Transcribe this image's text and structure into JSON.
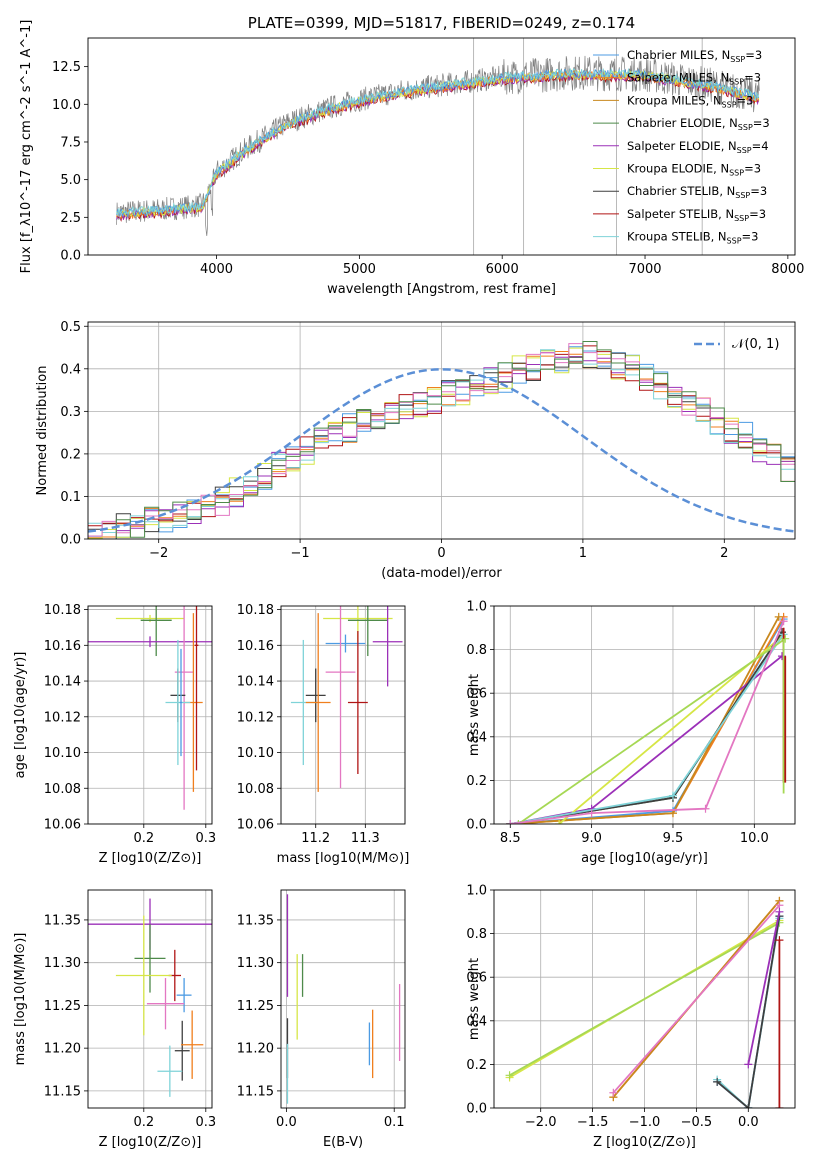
{
  "colors": {
    "Chabrier MILES": "#4C9BE3",
    "Salpeter MILES": "#F07F1E",
    "Kroupa MILES": "#C8881E",
    "Chabrier ELODIE": "#4E8A4A",
    "Salpeter ELODIE": "#9B30B8",
    "Kroupa ELODIE": "#D6E646",
    "Chabrier STELIB": "#3F3F3F",
    "Salpeter STELIB": "#B01515",
    "Kroupa STELIB": "#7FD3D8",
    "pink": "#E377C2",
    "lime": "#A6D854",
    "data": "#808080",
    "normal": "#5B8FD6"
  },
  "chart_data": [
    {
      "id": "spectrum",
      "type": "line",
      "title": "PLATE=0399, MJD=51817, FIBERID=0249, z=0.174",
      "xlabel": "wavelength [Angstrom, rest frame]",
      "ylabel": "Flux [f_λ10^-17 erg cm^-2 s^-1 A^-1]",
      "xlim": [
        3100,
        8050
      ],
      "ylim": [
        0,
        14.4
      ],
      "xticks": [
        "4000",
        "5000",
        "6000",
        "7000",
        "8000"
      ],
      "yticks": [
        "0.0",
        "2.5",
        "5.0",
        "7.5",
        "10.0",
        "12.5"
      ],
      "continuum_x": [
        3300,
        3600,
        3900,
        4000,
        4200,
        4500,
        4800,
        5000,
        5300,
        5600,
        6000,
        6500,
        7000,
        7500,
        7800
      ],
      "continuum_y": [
        2.8,
        3.0,
        3.3,
        5.5,
        7.0,
        8.8,
        9.8,
        10.3,
        10.9,
        11.3,
        11.8,
        12.1,
        12.0,
        11.2,
        10.5
      ],
      "vlines": [
        5800,
        6150,
        6800,
        7400
      ],
      "legend": [
        {
          "label": "Chabrier MILES, N",
          "sub": "SSP",
          "suffix": "=3"
        },
        {
          "label": "Salpeter MILES, N",
          "sub": "SSP",
          "suffix": "=3"
        },
        {
          "label": "Kroupa MILES, N",
          "sub": "SSP",
          "suffix": "=3"
        },
        {
          "label": "Chabrier ELODIE, N",
          "sub": "SSP",
          "suffix": "=3"
        },
        {
          "label": "Salpeter ELODIE, N",
          "sub": "SSP",
          "suffix": "=4"
        },
        {
          "label": "Kroupa ELODIE, N",
          "sub": "SSP",
          "suffix": "=3"
        },
        {
          "label": "Chabrier STELIB, N",
          "sub": "SSP",
          "suffix": "=3"
        },
        {
          "label": "Salpeter STELIB, N",
          "sub": "SSP",
          "suffix": "=3"
        },
        {
          "label": "Kroupa STELIB, N",
          "sub": "SSP",
          "suffix": "=3"
        }
      ]
    },
    {
      "id": "residuals",
      "type": "histogram",
      "xlabel": "(data-model)/error",
      "ylabel": "Normed distribution",
      "xlim": [
        -2.5,
        2.5
      ],
      "ylim": [
        0,
        0.51
      ],
      "xticks": [
        "−2",
        "−1",
        "0",
        "1",
        "2"
      ],
      "yticks": [
        "0.0",
        "0.1",
        "0.2",
        "0.3",
        "0.4",
        "0.5"
      ],
      "legend": "𝒩(0, 1)",
      "bin_width": 0.1,
      "base_profile": [
        0.02,
        0.02,
        0.03,
        0.03,
        0.04,
        0.05,
        0.06,
        0.07,
        0.08,
        0.09,
        0.11,
        0.13,
        0.15,
        0.17,
        0.19,
        0.21,
        0.23,
        0.24,
        0.26,
        0.27,
        0.29,
        0.3,
        0.31,
        0.32,
        0.33,
        0.34,
        0.35,
        0.36,
        0.37,
        0.38,
        0.4,
        0.4,
        0.41,
        0.42,
        0.43,
        0.43,
        0.42,
        0.41,
        0.4,
        0.38,
        0.36,
        0.34,
        0.32,
        0.3,
        0.28,
        0.26,
        0.24,
        0.21,
        0.19,
        0.17
      ]
    },
    {
      "id": "age-vs-z",
      "type": "errorbar",
      "xlabel": "Z [log10(Z/Z⊙)]",
      "ylabel": "age  [log10(age/yr)]",
      "xlim": [
        0.11,
        0.31
      ],
      "ylim": [
        10.06,
        10.182
      ],
      "xticks": [
        "0.2",
        "0.3"
      ],
      "yticks": [
        "10.06",
        "10.08",
        "10.10",
        "10.12",
        "10.14",
        "10.16",
        "10.18"
      ],
      "points": [
        {
          "c": "Kroupa ELODIE",
          "x": 0.21,
          "xe": 0.055,
          "y": 10.175,
          "ye": 0.002
        },
        {
          "c": "Chabrier ELODIE",
          "x": 0.22,
          "xe": 0.025,
          "y": 10.174,
          "ye": 0.02
        },
        {
          "c": "Salpeter ELODIE",
          "x": 0.21,
          "xe": 0.1,
          "y": 10.162,
          "ye": 0.003
        },
        {
          "c": "pink",
          "x": 0.265,
          "xe": 0.015,
          "y": 10.145,
          "ye": 0.077
        },
        {
          "c": "Chabrier STELIB",
          "x": 0.255,
          "xe": 0.012,
          "y": 10.132,
          "ye": 0.015
        },
        {
          "c": "Salpeter MILES",
          "x": 0.28,
          "xe": 0.015,
          "y": 10.128,
          "ye": 0.05
        },
        {
          "c": "Kroupa STELIB",
          "x": 0.255,
          "xe": 0.02,
          "y": 10.128,
          "ye": 0.035
        },
        {
          "c": "Salpeter STELIB",
          "x": 0.285,
          "xe": 0.003,
          "y": 10.16,
          "ye": 0.07
        },
        {
          "c": "Chabrier MILES",
          "x": 0.26,
          "xe": 0.002,
          "y": 10.128,
          "ye": 0.03
        }
      ]
    },
    {
      "id": "age-vs-mass",
      "type": "errorbar",
      "xlabel": "mass [log10(M/M⊙)]",
      "ylabel": "",
      "xlim": [
        11.13,
        11.38
      ],
      "ylim": [
        10.06,
        10.182
      ],
      "xticks": [
        "11.2",
        "11.3"
      ],
      "yticks": [
        "10.06",
        "10.08",
        "10.10",
        "10.12",
        "10.14",
        "10.16",
        "10.18"
      ],
      "points": [
        {
          "c": "Kroupa ELODIE",
          "x": 11.285,
          "xe": 0.07,
          "y": 10.175,
          "ye": 0.013
        },
        {
          "c": "Chabrier ELODIE",
          "x": 11.305,
          "xe": 0.04,
          "y": 10.174,
          "ye": 0.02
        },
        {
          "c": "Salpeter ELODIE",
          "x": 11.345,
          "xe": 0.03,
          "y": 10.162,
          "ye": 0.025
        },
        {
          "c": "Chabrier MILES",
          "x": 11.26,
          "xe": 0.04,
          "y": 10.161,
          "ye": 0.005
        },
        {
          "c": "pink",
          "x": 11.25,
          "xe": 0.03,
          "y": 10.145,
          "ye": 0.065
        },
        {
          "c": "Chabrier STELIB",
          "x": 11.2,
          "xe": 0.02,
          "y": 10.132,
          "ye": 0.015
        },
        {
          "c": "Kroupa STELIB",
          "x": 11.175,
          "xe": 0.025,
          "y": 10.128,
          "ye": 0.035
        },
        {
          "c": "Salpeter MILES",
          "x": 11.205,
          "xe": 0.025,
          "y": 10.128,
          "ye": 0.05
        },
        {
          "c": "Salpeter STELIB",
          "x": 11.285,
          "xe": 0.02,
          "y": 10.128,
          "ye": 0.04
        }
      ]
    },
    {
      "id": "mass-weight-vs-age",
      "type": "line",
      "xlabel": "age  [log10(age/yr)]",
      "ylabel": "mass weight",
      "xlim": [
        8.4,
        10.25
      ],
      "ylim": [
        0,
        1.0
      ],
      "xticks": [
        "8.5",
        "9.0",
        "9.5",
        "10.0"
      ],
      "yticks": [
        "0.0",
        "0.2",
        "0.4",
        "0.6",
        "0.8",
        "1.0"
      ],
      "series": [
        {
          "c": "Chabrier MILES",
          "x": [
            8.5,
            9.5,
            10.18
          ],
          "y": [
            0.0,
            0.06,
            0.94
          ]
        },
        {
          "c": "Salpeter MILES",
          "x": [
            8.5,
            9.5,
            10.18
          ],
          "y": [
            0.0,
            0.05,
            0.95
          ]
        },
        {
          "c": "Kroupa MILES",
          "x": [
            8.5,
            9.5,
            10.15
          ],
          "y": [
            0.0,
            0.05,
            0.95
          ]
        },
        {
          "c": "Chabrier ELODIE",
          "x": [
            8.5,
            9.5,
            10.17
          ],
          "y": [
            0.0,
            0.12,
            0.88
          ]
        },
        {
          "c": "Salpeter ELODIE",
          "x": [
            8.5,
            9.0,
            10.17
          ],
          "y": [
            0.0,
            0.07,
            0.77
          ]
        },
        {
          "c": "Kroupa ELODIE",
          "x": [
            8.8,
            10.17
          ],
          "y": [
            0.0,
            0.86
          ]
        },
        {
          "c": "Chabrier STELIB",
          "x": [
            8.5,
            9.5,
            10.17
          ],
          "y": [
            0.0,
            0.12,
            0.88
          ]
        },
        {
          "c": "Kroupa STELIB",
          "x": [
            8.5,
            9.5,
            10.18
          ],
          "y": [
            0.0,
            0.13,
            0.87
          ]
        },
        {
          "c": "lime",
          "x": [
            8.55,
            10.19
          ],
          "y": [
            0.0,
            0.85
          ]
        },
        {
          "c": "pink",
          "x": [
            8.5,
            9.0,
            9.7,
            10.18
          ],
          "y": [
            0.0,
            0.05,
            0.07,
            0.93
          ]
        }
      ],
      "stubs": [
        {
          "c": "Salpeter STELIB",
          "x": 10.18,
          "y0": 0.19,
          "y1": 0.9
        },
        {
          "c": "lime",
          "x": 10.18,
          "y0": 0.14,
          "y1": 0.85
        },
        {
          "c": "Salpeter STELIB",
          "x": 10.19,
          "y0": 0.19,
          "y1": 0.77
        }
      ]
    },
    {
      "id": "mass-vs-z",
      "type": "errorbar",
      "xlabel": "Z [log10(Z/Z⊙)]",
      "ylabel": "mass [log10(M/M⊙)]",
      "xlim": [
        0.11,
        0.31
      ],
      "ylim": [
        11.13,
        11.385
      ],
      "xticks": [
        "0.2",
        "0.3"
      ],
      "yticks": [
        "11.15",
        "11.20",
        "11.25",
        "11.30",
        "11.35"
      ],
      "points": [
        {
          "c": "Salpeter ELODIE",
          "x": 0.21,
          "xe": 0.1,
          "y": 11.345,
          "ye": 0.03
        },
        {
          "c": "Chabrier ELODIE",
          "x": 0.21,
          "xe": 0.025,
          "y": 11.305,
          "ye": 0.04
        },
        {
          "c": "Salpeter STELIB",
          "x": 0.25,
          "xe": 0.01,
          "y": 11.285,
          "ye": 0.03
        },
        {
          "c": "Kroupa ELODIE",
          "x": 0.2,
          "xe": 0.045,
          "y": 11.285,
          "ye": 0.07
        },
        {
          "c": "Chabrier MILES",
          "x": 0.265,
          "xe": 0.012,
          "y": 11.262,
          "ye": 0.02
        },
        {
          "c": "pink",
          "x": 0.235,
          "xe": 0.03,
          "y": 11.252,
          "ye": 0.03
        },
        {
          "c": "Chabrier STELIB",
          "x": 0.262,
          "xe": 0.012,
          "y": 11.197,
          "ye": 0.035
        },
        {
          "c": "Salpeter MILES",
          "x": 0.278,
          "xe": 0.018,
          "y": 11.204,
          "ye": 0.04
        },
        {
          "c": "Kroupa STELIB",
          "x": 0.242,
          "xe": 0.02,
          "y": 11.173,
          "ye": 0.03
        }
      ]
    },
    {
      "id": "mass-vs-ebv",
      "type": "errorbar",
      "xlabel": "E(B-V)",
      "ylabel": "",
      "xlim": [
        -0.005,
        0.11
      ],
      "ylim": [
        11.13,
        11.385
      ],
      "xticks": [
        "0.0",
        "0.1"
      ],
      "yticks": [
        "11.15",
        "11.20",
        "11.25",
        "11.30",
        "11.35"
      ],
      "points": [
        {
          "c": "Salpeter ELODIE",
          "x": 0.001,
          "xe": 0.0,
          "y": 11.32,
          "ye": 0.06
        },
        {
          "c": "Chabrier ELODIE",
          "x": 0.015,
          "xe": 0.0,
          "y": 11.285,
          "ye": 0.025
        },
        {
          "c": "Kroupa ELODIE",
          "x": 0.01,
          "xe": 0.0,
          "y": 11.26,
          "ye": 0.05
        },
        {
          "c": "Chabrier STELIB",
          "x": 0.001,
          "xe": 0.0,
          "y": 11.2,
          "ye": 0.035
        },
        {
          "c": "Kroupa STELIB",
          "x": 0.001,
          "xe": 0.0,
          "y": 11.17,
          "ye": 0.035
        },
        {
          "c": "Chabrier MILES",
          "x": 0.077,
          "xe": 0.0,
          "y": 11.205,
          "ye": 0.025
        },
        {
          "c": "Salpeter MILES",
          "x": 0.08,
          "xe": 0.0,
          "y": 11.205,
          "ye": 0.04
        },
        {
          "c": "pink",
          "x": 0.105,
          "xe": 0.0,
          "y": 11.23,
          "ye": 0.045
        }
      ]
    },
    {
      "id": "mass-weight-vs-z",
      "type": "line",
      "xlabel": "Z [log10(Z/Z⊙)]",
      "ylabel": "mass weight",
      "xlim": [
        -2.45,
        0.45
      ],
      "ylim": [
        0,
        1.0
      ],
      "xticks": [
        "−2.0",
        "−1.5",
        "−1.0",
        "−0.5",
        "0.0"
      ],
      "yticks": [
        "0.0",
        "0.2",
        "0.4",
        "0.6",
        "0.8",
        "1.0"
      ],
      "series": [
        {
          "c": "Kroupa ELODIE",
          "x": [
            -2.3,
            0.3
          ],
          "y": [
            0.14,
            0.86
          ]
        },
        {
          "c": "lime",
          "x": [
            -2.3,
            0.3
          ],
          "y": [
            0.15,
            0.85
          ]
        },
        {
          "c": "Salpeter MILES",
          "x": [
            -1.3,
            0.3
          ],
          "y": [
            0.05,
            0.95
          ]
        },
        {
          "c": "Kroupa MILES",
          "x": [
            -1.3,
            0.3
          ],
          "y": [
            0.05,
            0.95
          ]
        },
        {
          "c": "pink",
          "x": [
            -1.3,
            0.3
          ],
          "y": [
            0.07,
            0.93
          ]
        },
        {
          "c": "Chabrier MILES",
          "x": [
            -0.3,
            0.0,
            0.3
          ],
          "y": [
            0.12,
            0.0,
            0.88
          ]
        },
        {
          "c": "Kroupa STELIB",
          "x": [
            -0.3,
            0.0,
            0.3
          ],
          "y": [
            0.13,
            0.0,
            0.87
          ]
        },
        {
          "c": "Chabrier STELIB",
          "x": [
            -0.3,
            0.0,
            0.3
          ],
          "y": [
            0.12,
            0.0,
            0.88
          ]
        },
        {
          "c": "Salpeter ELODIE",
          "x": [
            0.0,
            0.3
          ],
          "y": [
            0.2,
            0.9
          ]
        },
        {
          "c": "Salpeter STELIB",
          "x": [
            0.3,
            0.3
          ],
          "y": [
            0.77,
            0.0
          ]
        }
      ]
    }
  ]
}
